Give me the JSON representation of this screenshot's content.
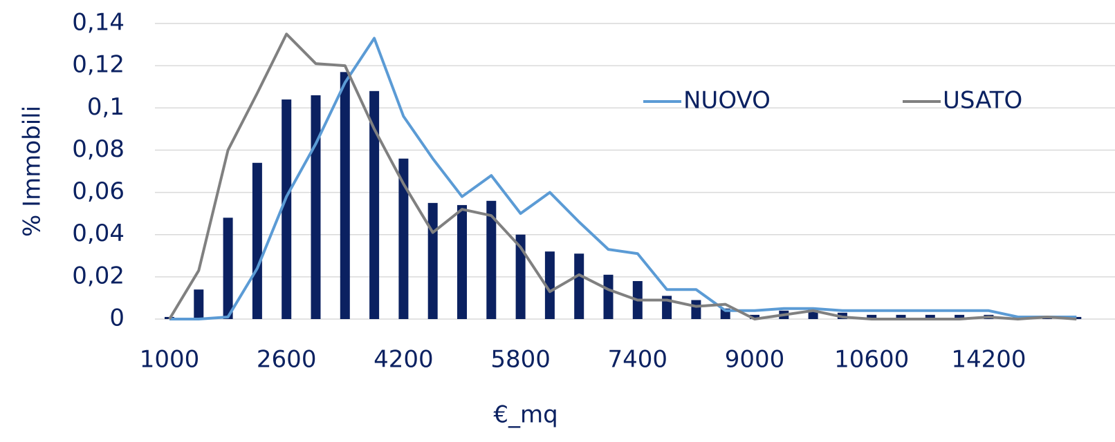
{
  "chart_data": {
    "type": "bar",
    "x_label": "€_mq",
    "y_label": "% Immobili",
    "categories": [
      "1000",
      null,
      null,
      null,
      "2600",
      null,
      null,
      null,
      "4200",
      null,
      null,
      null,
      "5800",
      null,
      null,
      null,
      "7400",
      null,
      null,
      null,
      "9000",
      null,
      null,
      null,
      "10600",
      null,
      null,
      null,
      "14200",
      null,
      null,
      null
    ],
    "series": [
      {
        "type": "bar",
        "color": "#0b2161",
        "values": [
          0.001,
          0.014,
          0.048,
          0.074,
          0.104,
          0.106,
          0.117,
          0.108,
          0.076,
          0.055,
          0.054,
          0.056,
          0.04,
          0.032,
          0.031,
          0.021,
          0.018,
          0.011,
          0.009,
          0.005,
          0.002,
          0.004,
          0.005,
          0.003,
          0.002,
          0.002,
          0.002,
          0.002,
          0.002,
          0.001,
          0.001,
          0.001
        ]
      },
      {
        "type": "line",
        "name": "NUOVO",
        "color": "#5b9bd5",
        "values": [
          0,
          0,
          0.001,
          0.024,
          0.058,
          0.083,
          0.112,
          0.133,
          0.096,
          0.076,
          0.058,
          0.068,
          0.05,
          0.06,
          0.046,
          0.033,
          0.031,
          0.014,
          0.014,
          0.004,
          0.004,
          0.005,
          0.005,
          0.004,
          0.004,
          0.004,
          0.004,
          0.004,
          0.004,
          0.001,
          0.001,
          0.001
        ]
      },
      {
        "type": "line",
        "name": "USATO",
        "color": "#808080",
        "values": [
          0,
          0.023,
          0.08,
          0.107,
          0.135,
          0.121,
          0.12,
          0.09,
          0.064,
          0.041,
          0.052,
          0.049,
          0.034,
          0.013,
          0.021,
          0.014,
          0.009,
          0.009,
          0.006,
          0.007,
          0,
          0.002,
          0.004,
          0.001,
          0,
          0,
          0,
          0,
          0.001,
          0,
          0.001,
          0
        ]
      }
    ],
    "ylim": [
      0,
      0.14
    ],
    "yticks": [
      0,
      {
        "value": 0.02,
        "label": "0,02"
      },
      {
        "value": 0.04,
        "label": "0,04"
      },
      {
        "value": 0.06,
        "label": "0,06"
      },
      {
        "value": 0.08,
        "label": "0,08"
      },
      {
        "value": 0.1,
        "label": "0,1"
      },
      {
        "value": 0.12,
        "label": "0,12"
      },
      {
        "value": 0.14,
        "label": "0,14"
      }
    ],
    "grid": true,
    "legend": "upper right"
  }
}
